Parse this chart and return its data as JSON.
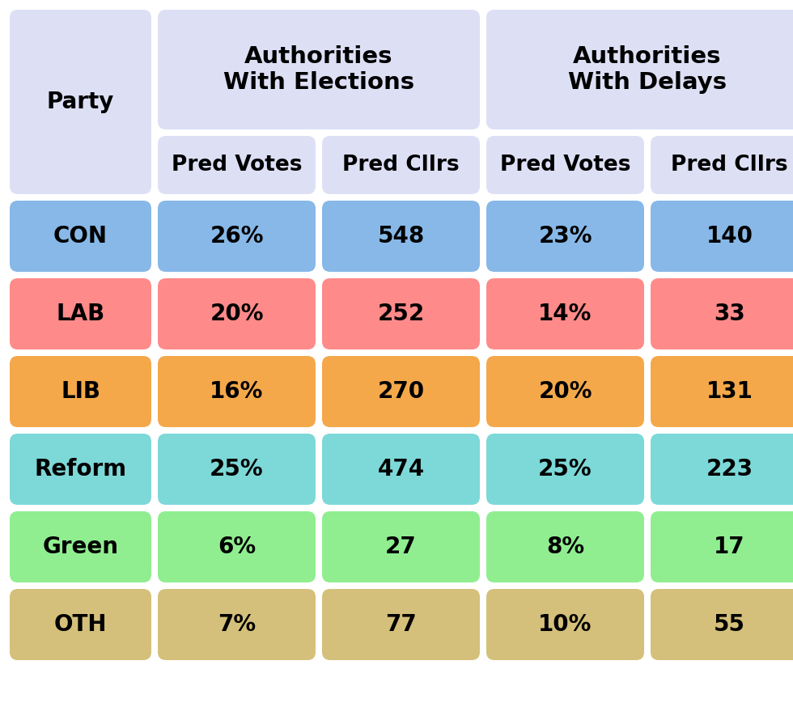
{
  "background_color": "#ffffff",
  "header_bg": "#dde0f5",
  "parties": [
    "CON",
    "LAB",
    "LIB",
    "Reform",
    "Green",
    "OTH"
  ],
  "party_colors": [
    "#87b8e8",
    "#ff8a8a",
    "#f4a84a",
    "#7dd8d8",
    "#90ee90",
    "#d4c07a"
  ],
  "table_data": [
    {
      "party": "CON",
      "elec_votes": "26%",
      "elec_cllrs": "548",
      "delay_votes": "23%",
      "delay_cllrs": "140"
    },
    {
      "party": "LAB",
      "elec_votes": "20%",
      "elec_cllrs": "252",
      "delay_votes": "14%",
      "delay_cllrs": "33"
    },
    {
      "party": "LIB",
      "elec_votes": "16%",
      "elec_cllrs": "270",
      "delay_votes": "20%",
      "delay_cllrs": "131"
    },
    {
      "party": "Reform",
      "elec_votes": "25%",
      "elec_cllrs": "474",
      "delay_votes": "25%",
      "delay_cllrs": "223"
    },
    {
      "party": "Green",
      "elec_votes": "6%",
      "elec_cllrs": "27",
      "delay_votes": "8%",
      "delay_cllrs": "17"
    },
    {
      "party": "OTH",
      "elec_votes": "7%",
      "elec_cllrs": "77",
      "delay_votes": "10%",
      "delay_cllrs": "55"
    }
  ],
  "col_headers": [
    "Pred Votes",
    "Pred Cllrs",
    "Pred Votes",
    "Pred Cllrs"
  ],
  "group_headers": [
    "Authorities\nWith Elections",
    "Authorities\nWith Delays"
  ],
  "party_label": "Party",
  "data_font_size": 20,
  "header_font_size": 19,
  "group_header_font_size": 21,
  "party_font_size": 20
}
